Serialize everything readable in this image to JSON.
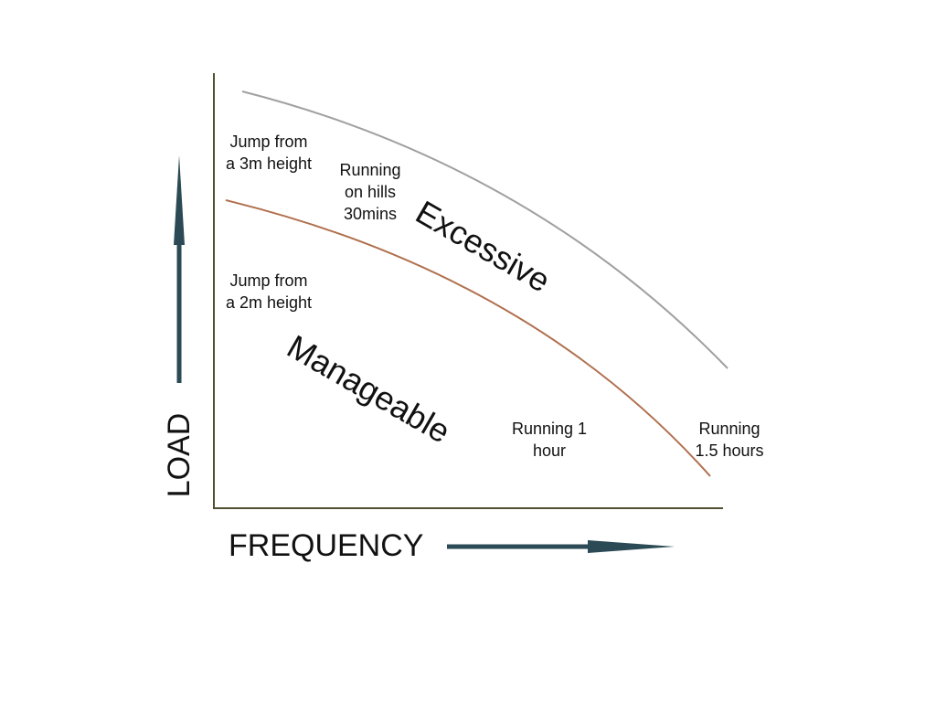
{
  "axes": {
    "x_label": "FREQUENCY",
    "y_label": "LOAD"
  },
  "regions": [
    {
      "label": "Excessive"
    },
    {
      "label": "Manageable"
    }
  ],
  "annotations": [
    {
      "lines": [
        "Jump from",
        "a 3m height"
      ]
    },
    {
      "lines": [
        "Running",
        "on hills",
        "30mins"
      ]
    },
    {
      "lines": [
        "Jump from",
        "a 2m height"
      ]
    },
    {
      "lines": [
        "Running 1",
        "hour"
      ]
    },
    {
      "lines": [
        "Running",
        "1.5 hours"
      ]
    }
  ]
}
